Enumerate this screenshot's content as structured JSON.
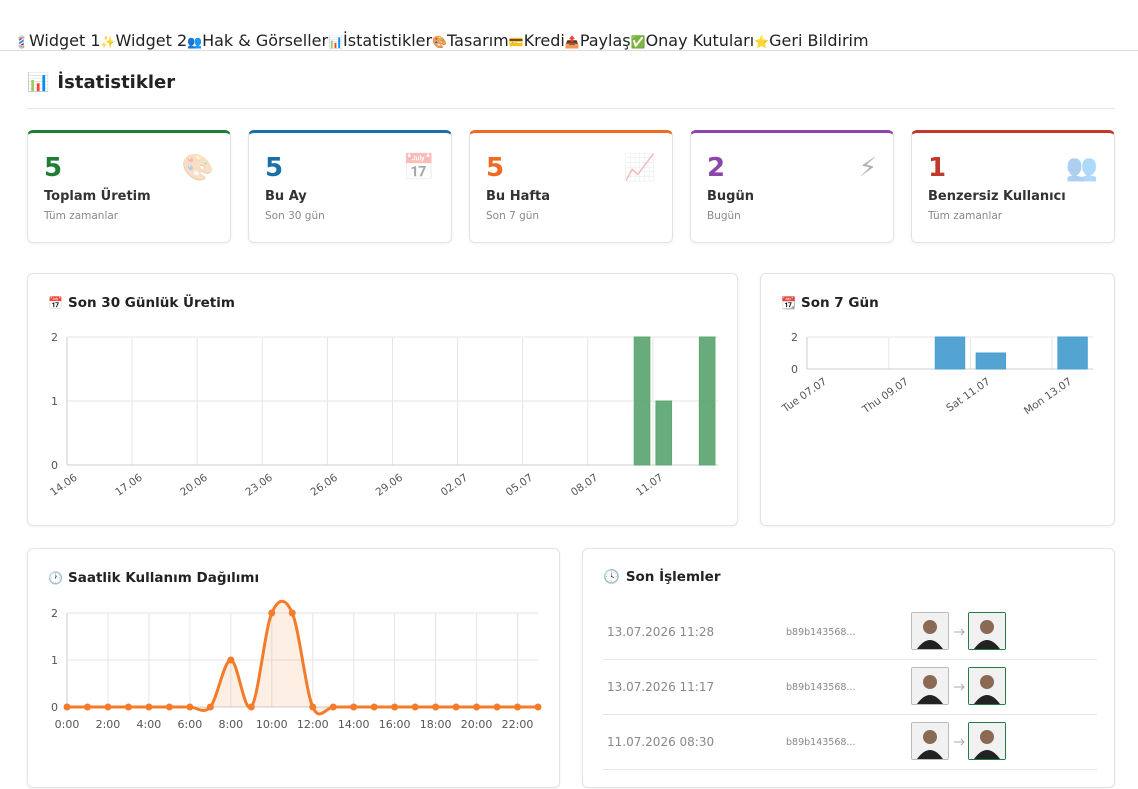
{
  "tabs": [
    {
      "icon": "💈",
      "label": "Widget 1"
    },
    {
      "icon": "✨",
      "label": "Widget 2"
    },
    {
      "icon": "👥",
      "label": "Hak & Görseller"
    },
    {
      "icon": "📊",
      "label": "İstatistikler"
    },
    {
      "icon": "🎨",
      "label": "Tasarım"
    },
    {
      "icon": "💳",
      "label": "Kredi"
    },
    {
      "icon": "📤",
      "label": "Paylaş"
    },
    {
      "icon": "✅",
      "label": "Onay Kutuları"
    },
    {
      "icon": "⭐",
      "label": "Geri Bildirim"
    }
  ],
  "active_tab": 3,
  "section": {
    "icon": "📊",
    "title": "İstatistikler"
  },
  "stats": [
    {
      "value": 5,
      "label": "Toplam Üretim",
      "sub": "Tüm zamanlar",
      "icon": "🎨",
      "color": "#1e7e34"
    },
    {
      "value": 5,
      "label": "Bu Ay",
      "sub": "Son 30 gün",
      "icon": "📅",
      "color": "#1a6fa8"
    },
    {
      "value": 5,
      "label": "Bu Hafta",
      "sub": "Son 7 gün",
      "icon": "📈",
      "color": "#f06b22"
    },
    {
      "value": 2,
      "label": "Bugün",
      "sub": "Bugün",
      "icon": "⚡",
      "color": "#8e44ad"
    },
    {
      "value": 1,
      "label": "Benzersiz Kullanıcı",
      "sub": "Tüm zamanlar",
      "icon": "👥",
      "color": "#c0392b"
    }
  ],
  "chart_data": [
    {
      "type": "bar",
      "icon": "📅",
      "title": "Son 30 Günlük Üretim",
      "color": "#5fa873",
      "categories": [
        "14.06",
        null,
        null,
        "17.06",
        null,
        null,
        "20.06",
        null,
        null,
        "23.06",
        null,
        null,
        "26.06",
        null,
        null,
        "29.06",
        null,
        null,
        "02.07",
        null,
        null,
        "05.07",
        null,
        null,
        "08.07",
        null,
        null,
        "11.07",
        null,
        null
      ],
      "values": [
        0,
        0,
        0,
        0,
        0,
        0,
        0,
        0,
        0,
        0,
        0,
        0,
        0,
        0,
        0,
        0,
        0,
        0,
        0,
        0,
        0,
        0,
        0,
        0,
        0,
        0,
        2,
        1,
        0,
        2
      ],
      "ylim": [
        0,
        2
      ],
      "yticks": [
        0,
        1,
        2
      ],
      "grid": true
    },
    {
      "type": "bar",
      "icon": "📆",
      "title": "Son 7 Gün",
      "color": "#4a9fd0",
      "categories": [
        "Tue 07.07",
        null,
        "Thu 09.07",
        null,
        "Sat 11.07",
        null,
        "Mon 13.07"
      ],
      "values": [
        0,
        0,
        0,
        2,
        1,
        0,
        2
      ],
      "ylim": [
        0,
        2
      ],
      "yticks": [
        0,
        2
      ],
      "grid": true
    },
    {
      "type": "line",
      "icon": "🕐",
      "title": "Saatlik Kullanım Dağılımı",
      "color": "#f47b2a",
      "categories": [
        "0:00",
        null,
        "2:00",
        null,
        "4:00",
        null,
        "6:00",
        null,
        "8:00",
        null,
        "10:00",
        null,
        "12:00",
        null,
        "14:00",
        null,
        "16:00",
        null,
        "18:00",
        null,
        "20:00",
        null,
        "22:00",
        null
      ],
      "values": [
        0,
        0,
        0,
        0,
        0,
        0,
        0,
        0,
        1,
        0,
        2,
        2,
        0,
        0,
        0,
        0,
        0,
        0,
        0,
        0,
        0,
        0,
        0,
        0
      ],
      "ylim": [
        0,
        2
      ],
      "yticks": [
        0,
        1,
        2
      ],
      "grid": true
    }
  ],
  "recent": {
    "icon": "🕓",
    "title": "Son İşlemler",
    "rows": [
      {
        "date": "13.07.2026 11:28",
        "id": "b89b143568..."
      },
      {
        "date": "13.07.2026 11:17",
        "id": "b89b143568..."
      },
      {
        "date": "11.07.2026 08:30",
        "id": "b89b143568..."
      }
    ]
  }
}
